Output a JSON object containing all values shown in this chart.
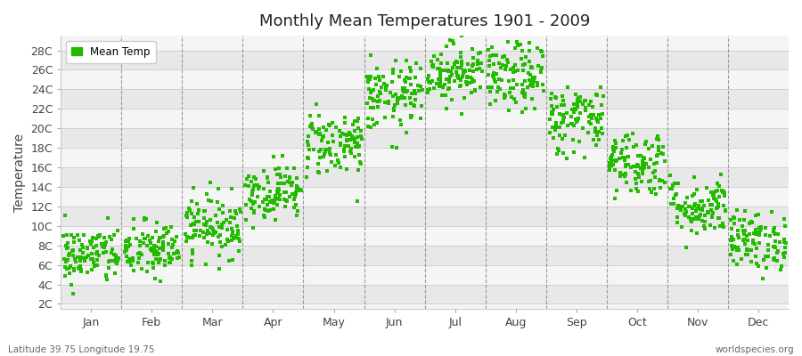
{
  "title": "Monthly Mean Temperatures 1901 - 2009",
  "ylabel": "Temperature",
  "xlabel_bottom_left": "Latitude 39.75 Longitude 19.75",
  "xlabel_bottom_right": "worldspecies.org",
  "legend_label": "Mean Temp",
  "dot_color": "#22bb00",
  "band_color_light": "#f5f5f5",
  "band_color_dark": "#e8e8e8",
  "background_color": "#ffffff",
  "ytick_labels": [
    "2C",
    "4C",
    "6C",
    "8C",
    "10C",
    "12C",
    "14C",
    "16C",
    "18C",
    "20C",
    "22C",
    "24C",
    "26C",
    "28C"
  ],
  "ytick_values": [
    2,
    4,
    6,
    8,
    10,
    12,
    14,
    16,
    18,
    20,
    22,
    24,
    26,
    28
  ],
  "ylim": [
    1.5,
    29.5
  ],
  "months": [
    "Jan",
    "Feb",
    "Mar",
    "Apr",
    "May",
    "Jun",
    "Jul",
    "Aug",
    "Sep",
    "Oct",
    "Nov",
    "Dec"
  ],
  "month_centers": [
    0.5,
    1.5,
    2.5,
    3.5,
    4.5,
    5.5,
    6.5,
    7.5,
    8.5,
    9.5,
    10.5,
    11.5
  ],
  "xlim": [
    0,
    12
  ],
  "mean_temps": [
    7.0,
    7.5,
    10.0,
    13.5,
    18.5,
    23.2,
    25.8,
    25.2,
    21.0,
    16.5,
    12.0,
    8.5
  ],
  "temp_spread": [
    1.5,
    1.5,
    1.6,
    1.4,
    1.7,
    1.8,
    1.5,
    1.8,
    1.8,
    1.7,
    1.5,
    1.5
  ],
  "n_points": 109,
  "seed": 42
}
